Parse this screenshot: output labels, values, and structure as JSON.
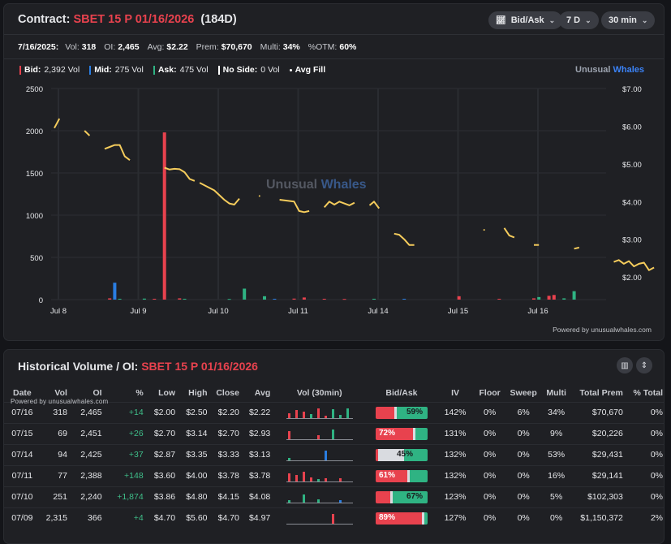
{
  "header": {
    "contract_label": "Contract:",
    "contract_name": "SBET 15 P 01/16/2026",
    "days": "(184D)",
    "controls": {
      "mode": "Bid/Ask",
      "range": "7 D",
      "interval": "30 min"
    }
  },
  "stats": [
    {
      "label": "7/16/2025:",
      "value": ""
    },
    {
      "label": "Vol:",
      "value": "318"
    },
    {
      "label": "OI:",
      "value": "2,465"
    },
    {
      "label": "Avg:",
      "value": "$2.22"
    },
    {
      "label": "Prem:",
      "value": "$70,670"
    },
    {
      "label": "Multi:",
      "value": "34%"
    },
    {
      "label": "%OTM:",
      "value": "60%"
    }
  ],
  "legend": {
    "bid": {
      "label": "Bid:",
      "value": "2,392 Vol",
      "color": "#e8424e"
    },
    "mid": {
      "label": "Mid:",
      "value": "275 Vol",
      "color": "#2a7de1"
    },
    "ask": {
      "label": "Ask:",
      "value": "475 Vol",
      "color": "#2fb383"
    },
    "noside": {
      "label": "No Side:",
      "value": "0 Vol",
      "color": "#ffffff"
    },
    "avgfill": {
      "label": "Avg Fill",
      "color": "#f5cc5c"
    }
  },
  "brand": {
    "part1": "Unusual ",
    "part2": "Whales"
  },
  "watermark": {
    "part1": "Unusual ",
    "part2": "Whales"
  },
  "powered": "Powered by unusualwhales.com",
  "chart_data": {
    "type": "bar",
    "x_axis": {
      "labels": [
        "Jul 8",
        "Jul 9",
        "Jul 10",
        "Jul 11",
        "Jul 14",
        "Jul 15",
        "Jul 16"
      ]
    },
    "y_left": {
      "range": [
        0,
        2500
      ],
      "ticks": [
        0,
        500,
        1000,
        1500,
        2000,
        2500
      ]
    },
    "y_right": {
      "range": [
        1.4,
        7.0
      ],
      "ticks": [
        "$2.00",
        "$3.00",
        "$4.00",
        "$5.00",
        "$6.00",
        "$7.00"
      ],
      "tick_values": [
        2,
        3,
        4,
        5,
        6,
        7
      ]
    },
    "grid": true,
    "bars": [
      {
        "session": 1,
        "slot": 12,
        "side": "mid",
        "value": 200
      },
      {
        "session": 1,
        "slot": 11,
        "side": "bid",
        "value": 15
      },
      {
        "session": 1,
        "slot": 13,
        "side": "ask",
        "value": 10
      },
      {
        "session": 2,
        "slot": 6,
        "side": "bid",
        "value": 1980
      },
      {
        "session": 2,
        "slot": 2,
        "side": "ask",
        "value": 12
      },
      {
        "session": 2,
        "slot": 4,
        "side": "bid",
        "value": 10
      },
      {
        "session": 2,
        "slot": 9,
        "side": "bid",
        "value": 15
      },
      {
        "session": 2,
        "slot": 10,
        "side": "ask",
        "value": 10
      },
      {
        "session": 3,
        "slot": 3,
        "side": "ask",
        "value": 8
      },
      {
        "session": 3,
        "slot": 6,
        "side": "ask",
        "value": 130
      },
      {
        "session": 3,
        "slot": 10,
        "side": "ask",
        "value": 40
      },
      {
        "session": 3,
        "slot": 12,
        "side": "mid",
        "value": 10
      },
      {
        "session": 4,
        "slot": 0,
        "side": "bid",
        "value": 12
      },
      {
        "session": 4,
        "slot": 2,
        "side": "bid",
        "value": 25
      },
      {
        "session": 4,
        "slot": 6,
        "side": "bid",
        "value": 10
      },
      {
        "session": 4,
        "slot": 10,
        "side": "bid",
        "value": 8
      },
      {
        "session": 5,
        "slot": 0,
        "side": "ask",
        "value": 10
      },
      {
        "session": 5,
        "slot": 6,
        "side": "mid",
        "value": 10
      },
      {
        "session": 6,
        "slot": 1,
        "side": "bid",
        "value": 40
      },
      {
        "session": 6,
        "slot": 9,
        "side": "bid",
        "value": 10
      },
      {
        "session": 7,
        "slot": 0,
        "side": "bid",
        "value": 15
      },
      {
        "session": 7,
        "slot": 1,
        "side": "ask",
        "value": 30
      },
      {
        "session": 7,
        "slot": 3,
        "side": "bid",
        "value": 45
      },
      {
        "session": 7,
        "slot": 4,
        "side": "bid",
        "value": 55
      },
      {
        "session": 7,
        "slot": 6,
        "side": "ask",
        "value": 15
      },
      {
        "session": 7,
        "slot": 8,
        "side": "ask",
        "value": 100
      }
    ],
    "avg_fill_segments": [
      [
        [
          1,
          0,
          5.95
        ],
        [
          1,
          1,
          6.2
        ]
      ],
      [
        [
          1,
          6,
          5.88
        ],
        [
          1,
          7,
          5.75
        ]
      ],
      [
        [
          1,
          10,
          5.4
        ],
        [
          1,
          11,
          5.45
        ],
        [
          1,
          12,
          5.5
        ],
        [
          1,
          13,
          5.5
        ],
        [
          1,
          14,
          5.2
        ],
        [
          1,
          15,
          5.1
        ]
      ],
      [
        [
          2,
          6,
          4.9
        ],
        [
          2,
          7,
          4.85
        ],
        [
          2,
          8,
          4.87
        ],
        [
          2,
          9,
          4.86
        ],
        [
          2,
          10,
          4.78
        ],
        [
          2,
          11,
          4.6
        ],
        [
          2,
          12,
          4.55
        ]
      ],
      [
        [
          2,
          13,
          4.5
        ],
        [
          3,
          0,
          4.3
        ],
        [
          3,
          2,
          4.05
        ],
        [
          3,
          3,
          3.95
        ],
        [
          3,
          4,
          3.92
        ],
        [
          3,
          5,
          4.08
        ]
      ],
      [
        [
          3,
          9,
          4.15
        ]
      ],
      [
        [
          3,
          13,
          4.05
        ],
        [
          4,
          0,
          4.0
        ],
        [
          4,
          1,
          3.75
        ],
        [
          4,
          2,
          3.72
        ],
        [
          4,
          3,
          3.75
        ]
      ],
      [
        [
          4,
          6,
          3.85
        ],
        [
          4,
          7,
          4.0
        ],
        [
          4,
          8,
          3.92
        ],
        [
          4,
          9,
          4.0
        ],
        [
          4,
          11,
          3.9
        ],
        [
          4,
          12,
          3.97
        ]
      ],
      [
        [
          4,
          15,
          3.9
        ],
        [
          5,
          0,
          4.0
        ],
        [
          5,
          1,
          3.82
        ]
      ],
      [
        [
          5,
          4,
          3.15
        ],
        [
          5,
          5,
          3.12
        ],
        [
          5,
          6,
          3.0
        ],
        [
          5,
          7,
          2.85
        ],
        [
          5,
          8,
          2.85
        ]
      ],
      [
        [
          6,
          6,
          3.25
        ]
      ],
      [
        [
          6,
          10,
          3.3
        ],
        [
          6,
          11,
          3.1
        ],
        [
          6,
          12,
          3.05
        ]
      ],
      [
        [
          7,
          0,
          2.85
        ],
        [
          7,
          1,
          2.85
        ]
      ],
      [
        [
          7,
          8,
          2.75
        ],
        [
          7,
          9,
          2.78
        ]
      ],
      [
        [
          8,
          0,
          2.4
        ],
        [
          8,
          1,
          2.45
        ],
        [
          8,
          2,
          2.35
        ],
        [
          8,
          3,
          2.42
        ],
        [
          8,
          4,
          2.28
        ],
        [
          8,
          5,
          2.35
        ],
        [
          8,
          6,
          2.38
        ],
        [
          8,
          7,
          2.18
        ],
        [
          8,
          8,
          2.25
        ]
      ]
    ]
  },
  "table": {
    "title_label": "Historical Volume / OI:",
    "title_contract": "SBET 15 P 01/16/2026",
    "powered": "Powered by unusualwhales.com",
    "columns": [
      "Date",
      "Vol",
      "OI",
      "%",
      "Low",
      "High",
      "Close",
      "Avg",
      "Vol (30min)",
      "Bid/Ask",
      "IV",
      "Floor",
      "Sweep",
      "Multi",
      "Total Prem",
      "% Total"
    ],
    "rows": [
      {
        "date": "07/16",
        "vol": "318",
        "oi": "2,465",
        "chg": "+14",
        "low": "$2.00",
        "high": "$2.50",
        "close": "$2.20",
        "avg": "$2.22",
        "bidask": {
          "bid": 0.36,
          "mid": 0.05,
          "ask": 0.59,
          "label": "59%",
          "side": "ask"
        },
        "iv": "142%",
        "floor": "0%",
        "sweep": "6%",
        "multi": "34%",
        "prem": "$70,670",
        "pct": "0%",
        "spark": [
          [
            "b",
            6
          ],
          [
            "b",
            10
          ],
          [
            "b",
            8
          ],
          [
            "a",
            5
          ],
          [
            "b",
            12
          ],
          [
            "b",
            3
          ],
          [
            "a",
            11
          ],
          [
            "a",
            4
          ],
          [
            "a",
            12
          ]
        ]
      },
      {
        "date": "07/15",
        "vol": "69",
        "oi": "2,451",
        "chg": "+26",
        "low": "$2.70",
        "high": "$3.14",
        "close": "$2.70",
        "avg": "$2.93",
        "bidask": {
          "bid": 0.72,
          "mid": 0.05,
          "ask": 0.23,
          "label": "72%",
          "side": "bid"
        },
        "iv": "131%",
        "floor": "0%",
        "sweep": "0%",
        "multi": "9%",
        "prem": "$20,226",
        "pct": "0%",
        "spark": [
          [
            "b",
            10
          ],
          [
            "b",
            0
          ],
          [
            "b",
            0
          ],
          [
            "b",
            0
          ],
          [
            "b",
            5
          ],
          [
            "b",
            0
          ],
          [
            "a",
            12
          ],
          [
            "b",
            0
          ],
          [
            "b",
            0
          ]
        ]
      },
      {
        "date": "07/14",
        "vol": "94",
        "oi": "2,425",
        "chg": "+37",
        "low": "$2.87",
        "high": "$3.35",
        "close": "$3.33",
        "avg": "$3.13",
        "bidask": {
          "bid": 0.05,
          "mid": 0.5,
          "ask": 0.45,
          "label": "45%",
          "side": "mid"
        },
        "iv": "132%",
        "floor": "0%",
        "sweep": "0%",
        "multi": "53%",
        "prem": "$29,431",
        "pct": "0%",
        "spark": [
          [
            "a",
            3
          ],
          [
            "b",
            0
          ],
          [
            "b",
            0
          ],
          [
            "b",
            0
          ],
          [
            "b",
            0
          ],
          [
            "m",
            12
          ],
          [
            "b",
            0
          ],
          [
            "b",
            0
          ],
          [
            "b",
            0
          ]
        ]
      },
      {
        "date": "07/11",
        "vol": "77",
        "oi": "2,388",
        "chg": "+148",
        "low": "$3.60",
        "high": "$4.00",
        "close": "$3.78",
        "avg": "$3.78",
        "bidask": {
          "bid": 0.61,
          "mid": 0.05,
          "ask": 0.34,
          "label": "61%",
          "side": "bid"
        },
        "iv": "132%",
        "floor": "0%",
        "sweep": "0%",
        "multi": "16%",
        "prem": "$29,141",
        "pct": "0%",
        "spark": [
          [
            "b",
            10
          ],
          [
            "b",
            8
          ],
          [
            "b",
            12
          ],
          [
            "b",
            5
          ],
          [
            "a",
            3
          ],
          [
            "b",
            4
          ],
          [
            "b",
            0
          ],
          [
            "b",
            4
          ],
          [
            "b",
            0
          ]
        ]
      },
      {
        "date": "07/10",
        "vol": "251",
        "oi": "2,240",
        "chg": "+1,874",
        "low": "$3.86",
        "high": "$4.80",
        "close": "$4.15",
        "avg": "$4.08",
        "bidask": {
          "bid": 0.28,
          "mid": 0.05,
          "ask": 0.67,
          "label": "67%",
          "side": "ask"
        },
        "iv": "123%",
        "floor": "0%",
        "sweep": "0%",
        "multi": "5%",
        "prem": "$102,303",
        "pct": "0%",
        "spark": [
          [
            "a",
            3
          ],
          [
            "b",
            0
          ],
          [
            "a",
            10
          ],
          [
            "b",
            0
          ],
          [
            "a",
            4
          ],
          [
            "b",
            0
          ],
          [
            "b",
            0
          ],
          [
            "m",
            3
          ],
          [
            "b",
            0
          ]
        ]
      },
      {
        "date": "07/09",
        "vol": "2,315",
        "oi": "366",
        "chg": "+4",
        "low": "$4.70",
        "high": "$5.60",
        "close": "$4.70",
        "avg": "$4.97",
        "bidask": {
          "bid": 0.89,
          "mid": 0.05,
          "ask": 0.06,
          "label": "89%",
          "side": "bid"
        },
        "iv": "127%",
        "floor": "0%",
        "sweep": "0%",
        "multi": "0%",
        "prem": "$1,150,372",
        "pct": "2%",
        "spark": [
          [
            "b",
            0
          ],
          [
            "b",
            0
          ],
          [
            "b",
            0
          ],
          [
            "b",
            0
          ],
          [
            "b",
            0
          ],
          [
            "b",
            0
          ],
          [
            "b",
            12
          ],
          [
            "b",
            0
          ],
          [
            "b",
            0
          ]
        ]
      }
    ]
  }
}
